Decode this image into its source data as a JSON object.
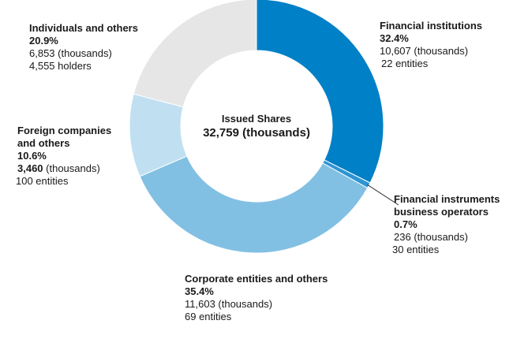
{
  "chart_data": {
    "type": "pie",
    "variant": "donut",
    "center_title": "Issued Shares",
    "center_value": "32,759 (thousands)",
    "segments": [
      {
        "name": "Financial institutions",
        "percent": 32.4,
        "value": 10607,
        "value_text": "10,607",
        "unit_text": " (thousands)",
        "count_text": "22 entities",
        "color": "#0080c6"
      },
      {
        "name": "Financial instruments business operators",
        "name_lines": [
          "Financial instruments",
          "business operators"
        ],
        "percent": 0.7,
        "value": 236,
        "value_text": "236",
        "unit_text": " (thousands)",
        "count_text": "30 entities",
        "color": "#2e95d3"
      },
      {
        "name": "Corporate entities and others",
        "percent": 35.4,
        "value": 11603,
        "value_text": "11,603",
        "unit_text": " (thousands)",
        "count_text": "69 entities",
        "color": "#82c0e3"
      },
      {
        "name": "Foreign companies and others",
        "name_lines": [
          "Foreign companies",
          "and others"
        ],
        "percent": 10.6,
        "value": 3460,
        "value_text": "3,460",
        "unit_text": " (thousands)",
        "count_text": "100 entities",
        "color": "#c0e0f2"
      },
      {
        "name": "Individuals and others",
        "percent": 20.9,
        "value": 6853,
        "value_text": "6,853",
        "unit_text": " (thousands)",
        "count_text": "4,555 holders",
        "color": "#e6e6e6"
      }
    ]
  }
}
